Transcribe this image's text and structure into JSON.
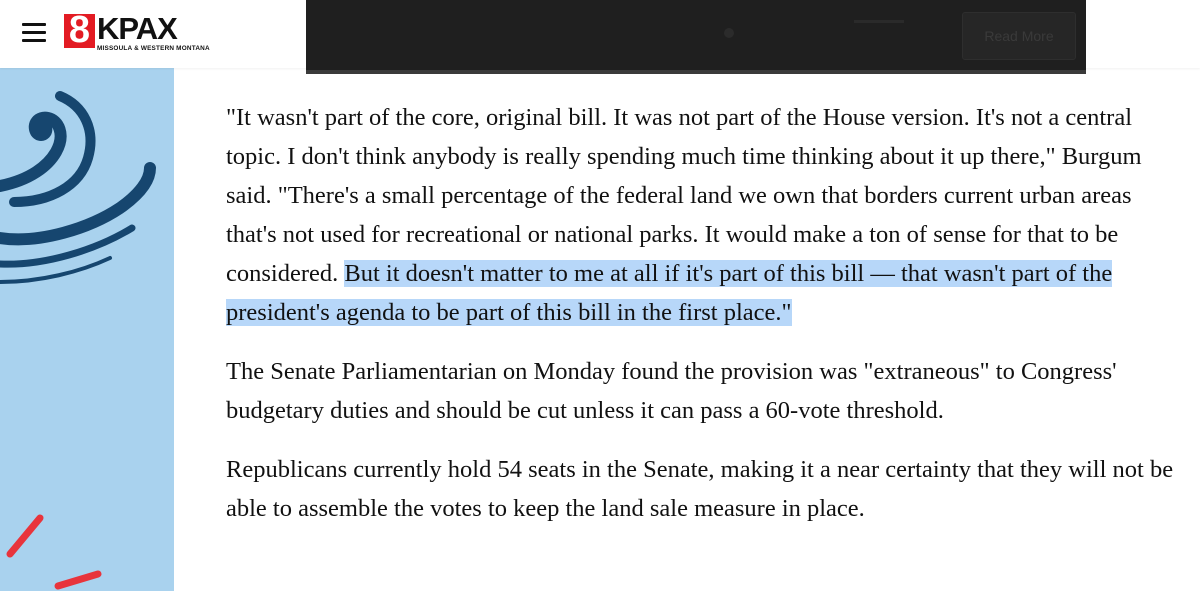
{
  "header": {
    "logo_number": "8",
    "logo_name": "KPAX",
    "logo_tagline": "MISSOULA & WESTERN MONTANA"
  },
  "video": {
    "button_label": "Read More"
  },
  "article": {
    "p1_plain": "\"It wasn't part of the core, original bill. It was not part of the House version. It's not a central topic. I don't think anybody is really spending much time thinking about it up there,\" Burgum said. \"There's a small percentage of the federal land we own that borders current urban areas that's not used for recreational or national parks. It would make a ton of sense for that to be considered. ",
    "p1_highlighted": "But it doesn't matter to me at all if it's part of this bill — that wasn't part of the president's agenda to be part of this bill in the first place.\"",
    "p2": "The Senate Parliamentarian on Monday found the provision was \"extraneous\" to Congress' budgetary duties and should be cut unless it can pass a 60-vote threshold.",
    "p3": "Republicans currently hold 54 seats in the Senate, making it a near certainty that they will not be able to assemble the votes to keep the land sale measure in place."
  },
  "colors": {
    "highlight": "#b7d7f9",
    "ad_background": "#a9d2ee",
    "ad_swirl": "#16466f",
    "ad_accent": "#e8343c",
    "brand_red": "#e31b23"
  }
}
